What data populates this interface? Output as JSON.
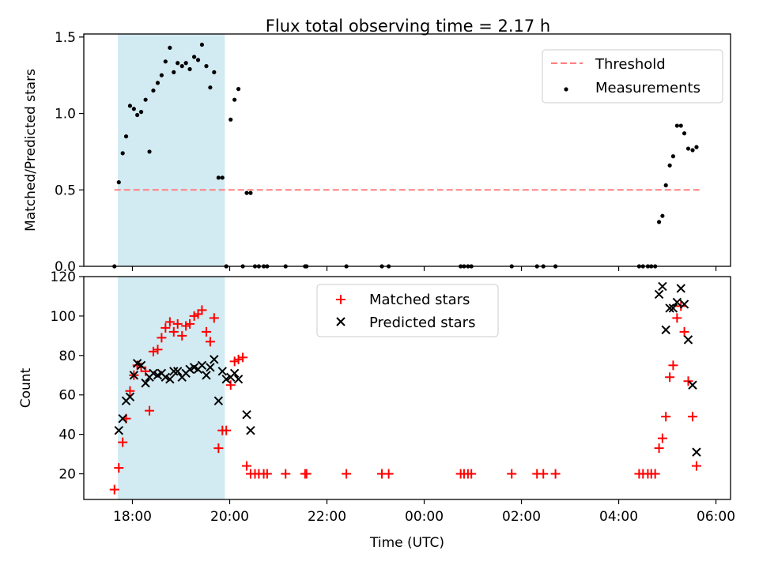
{
  "chart_data": [
    {
      "type": "scatter",
      "title": "Flux total observing time = 2.17 h",
      "ylabel": "Matched/Predicted stars",
      "xlabel": "",
      "x_unit": "hours",
      "ylim": [
        0,
        1.52
      ],
      "yticks": [
        0.0,
        0.5,
        1.0,
        1.5
      ],
      "ytick_labels": [
        "0.0",
        "0.5",
        "1.0",
        "1.5"
      ],
      "shaded_span": [
        -0.3,
        1.9
      ],
      "legend_position": "top-right",
      "legend": {
        "threshold": "Threshold",
        "measurements": "Measurements"
      },
      "threshold": {
        "name": "Threshold",
        "value": 0.5,
        "x_range": [
          -0.37,
          11.7
        ],
        "color": "#ff8080"
      },
      "series": [
        {
          "name": "Measurements",
          "color": "#000000",
          "points": [
            [
              -0.37,
              0.0
            ],
            [
              -0.28,
              0.55
            ],
            [
              -0.2,
              0.74
            ],
            [
              -0.13,
              0.85
            ],
            [
              -0.05,
              1.05
            ],
            [
              0.03,
              1.03
            ],
            [
              0.1,
              0.99
            ],
            [
              0.18,
              1.01
            ],
            [
              0.27,
              1.09
            ],
            [
              0.35,
              0.75
            ],
            [
              0.43,
              1.15
            ],
            [
              0.52,
              1.2
            ],
            [
              0.6,
              1.25
            ],
            [
              0.68,
              1.34
            ],
            [
              0.77,
              1.43
            ],
            [
              0.85,
              1.27
            ],
            [
              0.93,
              1.33
            ],
            [
              1.02,
              1.31
            ],
            [
              1.1,
              1.33
            ],
            [
              1.18,
              1.29
            ],
            [
              1.27,
              1.37
            ],
            [
              1.35,
              1.35
            ],
            [
              1.43,
              1.45
            ],
            [
              1.52,
              1.31
            ],
            [
              1.6,
              1.17
            ],
            [
              1.68,
              1.27
            ],
            [
              1.77,
              0.58
            ],
            [
              1.85,
              0.58
            ],
            [
              1.93,
              0.0
            ],
            [
              2.02,
              0.96
            ],
            [
              2.1,
              1.09
            ],
            [
              2.18,
              1.16
            ],
            [
              2.27,
              0.0
            ],
            [
              2.35,
              0.48
            ],
            [
              2.43,
              0.48
            ],
            [
              2.52,
              0.0
            ],
            [
              2.6,
              0.0
            ],
            [
              2.7,
              0.0
            ],
            [
              2.77,
              0.0
            ],
            [
              3.15,
              0.0
            ],
            [
              3.55,
              0.0
            ],
            [
              3.58,
              0.0
            ],
            [
              4.4,
              0.0
            ],
            [
              5.13,
              0.0
            ],
            [
              5.27,
              0.0
            ],
            [
              6.75,
              0.0
            ],
            [
              6.82,
              0.0
            ],
            [
              6.9,
              0.0
            ],
            [
              6.97,
              0.0
            ],
            [
              7.8,
              0.0
            ],
            [
              8.32,
              0.0
            ],
            [
              8.45,
              0.0
            ],
            [
              8.7,
              0.0
            ],
            [
              10.42,
              0.0
            ],
            [
              10.5,
              0.0
            ],
            [
              10.6,
              0.0
            ],
            [
              10.67,
              0.0
            ],
            [
              10.75,
              0.0
            ],
            [
              10.83,
              0.29
            ],
            [
              10.9,
              0.33
            ],
            [
              10.97,
              0.53
            ],
            [
              11.05,
              0.66
            ],
            [
              11.12,
              0.72
            ],
            [
              11.2,
              0.92
            ],
            [
              11.28,
              0.92
            ],
            [
              11.35,
              0.87
            ],
            [
              11.43,
              0.77
            ],
            [
              11.52,
              0.76
            ],
            [
              11.6,
              0.78
            ]
          ]
        }
      ]
    },
    {
      "type": "scatter",
      "ylabel": "Count",
      "xlabel": "Time (UTC)",
      "ylim": [
        7,
        120
      ],
      "yticks": [
        20,
        40,
        60,
        80,
        100,
        120
      ],
      "ytick_labels": [
        "20",
        "40",
        "60",
        "80",
        "100",
        "120"
      ],
      "xlim": [
        -1.0,
        12.3
      ],
      "xticks": [
        0,
        2,
        4,
        6,
        8,
        10,
        12
      ],
      "xtick_labels": [
        "18:00",
        "20:00",
        "22:00",
        "00:00",
        "02:00",
        "04:00",
        "06:00"
      ],
      "shaded_span": [
        -0.3,
        1.9
      ],
      "legend_position": "top-center",
      "legend": {
        "matched": "Matched stars",
        "predicted": "Predicted stars"
      },
      "series": [
        {
          "name": "Matched stars",
          "marker": "plus",
          "color": "#ff0000",
          "points": [
            [
              -0.37,
              12
            ],
            [
              -0.28,
              23
            ],
            [
              -0.2,
              36
            ],
            [
              -0.13,
              48
            ],
            [
              -0.05,
              62
            ],
            [
              0.03,
              70
            ],
            [
              0.1,
              75
            ],
            [
              0.18,
              74
            ],
            [
              0.27,
              72
            ],
            [
              0.35,
              52
            ],
            [
              0.43,
              82
            ],
            [
              0.52,
              83
            ],
            [
              0.6,
              89
            ],
            [
              0.68,
              94
            ],
            [
              0.77,
              97
            ],
            [
              0.85,
              92
            ],
            [
              0.93,
              96
            ],
            [
              1.02,
              90
            ],
            [
              1.1,
              95
            ],
            [
              1.18,
              96
            ],
            [
              1.27,
              100
            ],
            [
              1.35,
              101
            ],
            [
              1.43,
              103
            ],
            [
              1.52,
              92
            ],
            [
              1.6,
              87
            ],
            [
              1.68,
              99
            ],
            [
              1.77,
              33
            ],
            [
              1.85,
              42
            ],
            [
              1.93,
              42
            ],
            [
              2.02,
              65
            ],
            [
              2.1,
              77
            ],
            [
              2.18,
              78
            ],
            [
              2.27,
              79
            ],
            [
              2.35,
              24
            ],
            [
              2.43,
              20
            ],
            [
              2.52,
              20
            ],
            [
              2.6,
              20
            ],
            [
              2.7,
              20
            ],
            [
              2.77,
              20
            ],
            [
              3.15,
              20
            ],
            [
              3.55,
              20
            ],
            [
              3.58,
              20
            ],
            [
              4.4,
              20
            ],
            [
              5.13,
              20
            ],
            [
              5.27,
              20
            ],
            [
              6.75,
              20
            ],
            [
              6.82,
              20
            ],
            [
              6.9,
              20
            ],
            [
              6.97,
              20
            ],
            [
              7.8,
              20
            ],
            [
              8.32,
              20
            ],
            [
              8.45,
              20
            ],
            [
              8.7,
              20
            ],
            [
              10.42,
              20
            ],
            [
              10.5,
              20
            ],
            [
              10.6,
              20
            ],
            [
              10.67,
              20
            ],
            [
              10.75,
              20
            ],
            [
              10.83,
              33
            ],
            [
              10.9,
              38
            ],
            [
              10.97,
              49
            ],
            [
              11.05,
              69
            ],
            [
              11.12,
              75
            ],
            [
              11.2,
              99
            ],
            [
              11.28,
              105
            ],
            [
              11.35,
              92
            ],
            [
              11.43,
              67
            ],
            [
              11.52,
              49
            ],
            [
              11.6,
              24
            ]
          ]
        },
        {
          "name": "Predicted stars",
          "marker": "cross",
          "color": "#000000",
          "points": [
            [
              -0.28,
              42
            ],
            [
              -0.2,
              48
            ],
            [
              -0.13,
              57
            ],
            [
              -0.05,
              59
            ],
            [
              0.03,
              70
            ],
            [
              0.1,
              76
            ],
            [
              0.18,
              75
            ],
            [
              0.27,
              66
            ],
            [
              0.35,
              69
            ],
            [
              0.43,
              71
            ],
            [
              0.52,
              70
            ],
            [
              0.6,
              71
            ],
            [
              0.68,
              69
            ],
            [
              0.77,
              68
            ],
            [
              0.85,
              72
            ],
            [
              0.93,
              72
            ],
            [
              1.02,
              69
            ],
            [
              1.1,
              71
            ],
            [
              1.18,
              73
            ],
            [
              1.27,
              74
            ],
            [
              1.35,
              73
            ],
            [
              1.43,
              75
            ],
            [
              1.52,
              70
            ],
            [
              1.6,
              74
            ],
            [
              1.68,
              78
            ],
            [
              1.77,
              57
            ],
            [
              1.85,
              72
            ],
            [
              1.93,
              68
            ],
            [
              2.02,
              69
            ],
            [
              2.1,
              71
            ],
            [
              2.18,
              68
            ],
            [
              2.35,
              50
            ],
            [
              2.43,
              42
            ],
            [
              10.83,
              111
            ],
            [
              10.9,
              115
            ],
            [
              10.97,
              93
            ],
            [
              11.05,
              104
            ],
            [
              11.12,
              104
            ],
            [
              11.2,
              107
            ],
            [
              11.28,
              114
            ],
            [
              11.35,
              106
            ],
            [
              11.43,
              88
            ],
            [
              11.52,
              65
            ],
            [
              11.6,
              31
            ]
          ]
        }
      ]
    }
  ]
}
